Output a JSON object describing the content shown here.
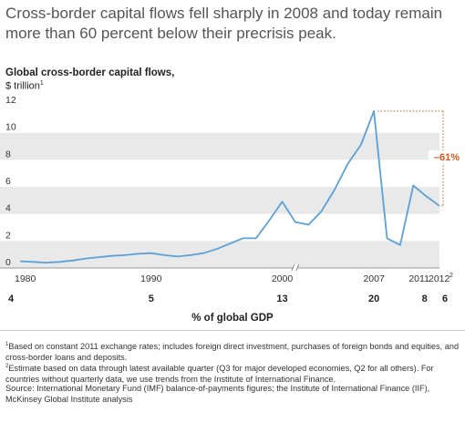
{
  "headline": "Cross-border capital flows fell sharply in 2008 and today remain more than 60 percent below their precrisis peak.",
  "chart_data": {
    "type": "line",
    "title": "Global cross-border capital flows,",
    "units": "$ trillion",
    "units_note": "1",
    "x": [
      1980,
      1981,
      1982,
      1983,
      1984,
      1985,
      1986,
      1987,
      1988,
      1989,
      1990,
      1991,
      1992,
      1993,
      1994,
      1995,
      1996,
      1997,
      1998,
      1999,
      2000,
      2001,
      2002,
      2003,
      2004,
      2005,
      2006,
      2007,
      2008,
      2009,
      2010,
      2011,
      2012
    ],
    "y": [
      0.5,
      0.45,
      0.4,
      0.45,
      0.55,
      0.7,
      0.8,
      0.9,
      0.95,
      1.05,
      1.1,
      0.95,
      0.85,
      0.95,
      1.1,
      1.4,
      1.8,
      2.2,
      2.2,
      3.5,
      4.9,
      3.4,
      3.2,
      4.2,
      5.8,
      7.7,
      9.1,
      11.6,
      2.2,
      1.7,
      6.1,
      5.3,
      4.6
    ],
    "xticks": [
      "1980",
      "1990",
      "2000",
      "2007",
      "2011",
      "2012"
    ],
    "xtick_values": [
      1980,
      1990,
      2000,
      2007,
      2011,
      2012
    ],
    "xtick_sup": {
      "2012": "2"
    },
    "yticks": [
      0,
      2,
      4,
      6,
      8,
      10,
      12
    ],
    "ylim": [
      0,
      12
    ],
    "xlim": [
      1980,
      2012
    ],
    "axis_break": true,
    "annotation": "–61%",
    "line_color": "#5aa1d8",
    "annotation_color": "#d9541e",
    "band_color": "#e9e9e9",
    "gdp_share": [
      {
        "year": 1980,
        "label": "4"
      },
      {
        "year": 1990,
        "label": "5"
      },
      {
        "year": 2000,
        "label": "13"
      },
      {
        "year": 2007,
        "label": "20"
      },
      {
        "year": 2011,
        "label": "8"
      },
      {
        "year": 2012,
        "label": "6"
      }
    ],
    "gdp_caption": "% of global GDP"
  },
  "footnotes": [
    {
      "mark": "1",
      "text": "Based on constant 2011 exchange rates; includes foreign direct investment, purchases of foreign bonds and equities, and cross-border loans and deposits."
    },
    {
      "mark": "2",
      "text": "Estimate based on data through latest available quarter (Q3 for major developed economies, Q2 for all others). For countries without quarterly data, we use trends from the Institute of International Finance."
    }
  ],
  "source": "Source: International Monetary Fund (IMF) balance-of-payments figures; the Institute of International Finance (IIF), McKinsey Global Institute analysis"
}
